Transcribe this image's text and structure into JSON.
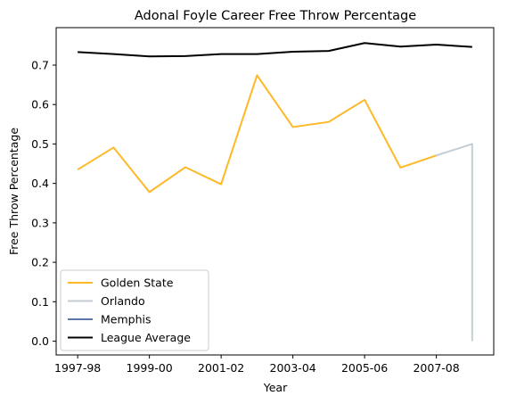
{
  "chart_data": {
    "type": "line",
    "title": "Adonal Foyle Career Free Throw Percentage",
    "xlabel": "Year",
    "ylabel": "Free Throw Percentage",
    "x_tick_labels": [
      "1997-98",
      "1999-00",
      "2001-02",
      "2003-04",
      "2005-06",
      "2007-08"
    ],
    "x_tick_positions": [
      0,
      2,
      4,
      6,
      8,
      10
    ],
    "xlim": [
      -0.6,
      11.6
    ],
    "ylim": [
      -0.035,
      0.795
    ],
    "y_ticks": [
      0.0,
      0.1,
      0.2,
      0.3,
      0.4,
      0.5,
      0.6,
      0.7
    ],
    "y_tick_labels": [
      "0.0",
      "0.1",
      "0.2",
      "0.3",
      "0.4",
      "0.5",
      "0.6",
      "0.7"
    ],
    "grid": false,
    "legend_position": "lower-left",
    "series": [
      {
        "name": "Golden State",
        "color": "#FDB927",
        "x": [
          0,
          1,
          2,
          3,
          4,
          5,
          6,
          7,
          8,
          9,
          10
        ],
        "values": [
          0.435,
          0.491,
          0.378,
          0.441,
          0.398,
          0.674,
          0.543,
          0.556,
          0.612,
          0.44,
          0.471
        ]
      },
      {
        "name": "Orlando",
        "color": "#C4CED4",
        "x": [
          10,
          11,
          11
        ],
        "values": [
          0.471,
          0.5,
          0.0
        ]
      },
      {
        "name": "Memphis",
        "color": "#5D76A9",
        "x": [],
        "values": []
      },
      {
        "name": "League Average",
        "color": "#000000",
        "x": [
          0,
          1,
          2,
          3,
          4,
          5,
          6,
          7,
          8,
          9,
          10,
          11
        ],
        "values": [
          0.733,
          0.728,
          0.722,
          0.723,
          0.728,
          0.728,
          0.734,
          0.736,
          0.756,
          0.747,
          0.752,
          0.746
        ]
      }
    ]
  }
}
